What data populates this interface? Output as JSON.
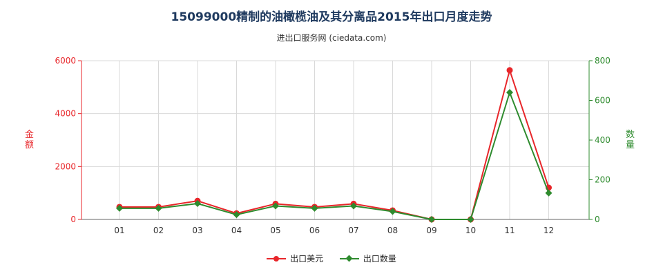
{
  "title": "15099000精制的油橄榄油及其分离品2015年出口月度走势",
  "subtitle": "进出口服务网 (ciedata.com)",
  "colors": {
    "usd": "#e8262a",
    "qty": "#2e8b2e",
    "grid": "#d9d9d9",
    "axis": "#666666"
  },
  "chart_data": {
    "type": "line",
    "categories": [
      "01",
      "02",
      "03",
      "04",
      "05",
      "06",
      "07",
      "08",
      "09",
      "10",
      "11",
      "12"
    ],
    "series": [
      {
        "name": "出口美元",
        "axis": "left",
        "marker": "circle",
        "values": [
          470,
          470,
          700,
          230,
          590,
          470,
          590,
          340,
          0,
          0,
          5640,
          1200
        ]
      },
      {
        "name": "出口数量",
        "axis": "right",
        "marker": "diamond",
        "values": [
          56,
          56,
          80,
          24,
          68,
          56,
          68,
          40,
          0,
          0,
          640,
          133
        ]
      }
    ],
    "y_left": {
      "label": "金额",
      "ylim": [
        0,
        6000
      ],
      "ticks": [
        0,
        2000,
        4000,
        6000
      ]
    },
    "y_right": {
      "label": "数量",
      "ylim": [
        0,
        800
      ],
      "ticks": [
        0,
        200,
        400,
        600,
        800
      ]
    },
    "grid": true,
    "legend_position": "bottom"
  }
}
